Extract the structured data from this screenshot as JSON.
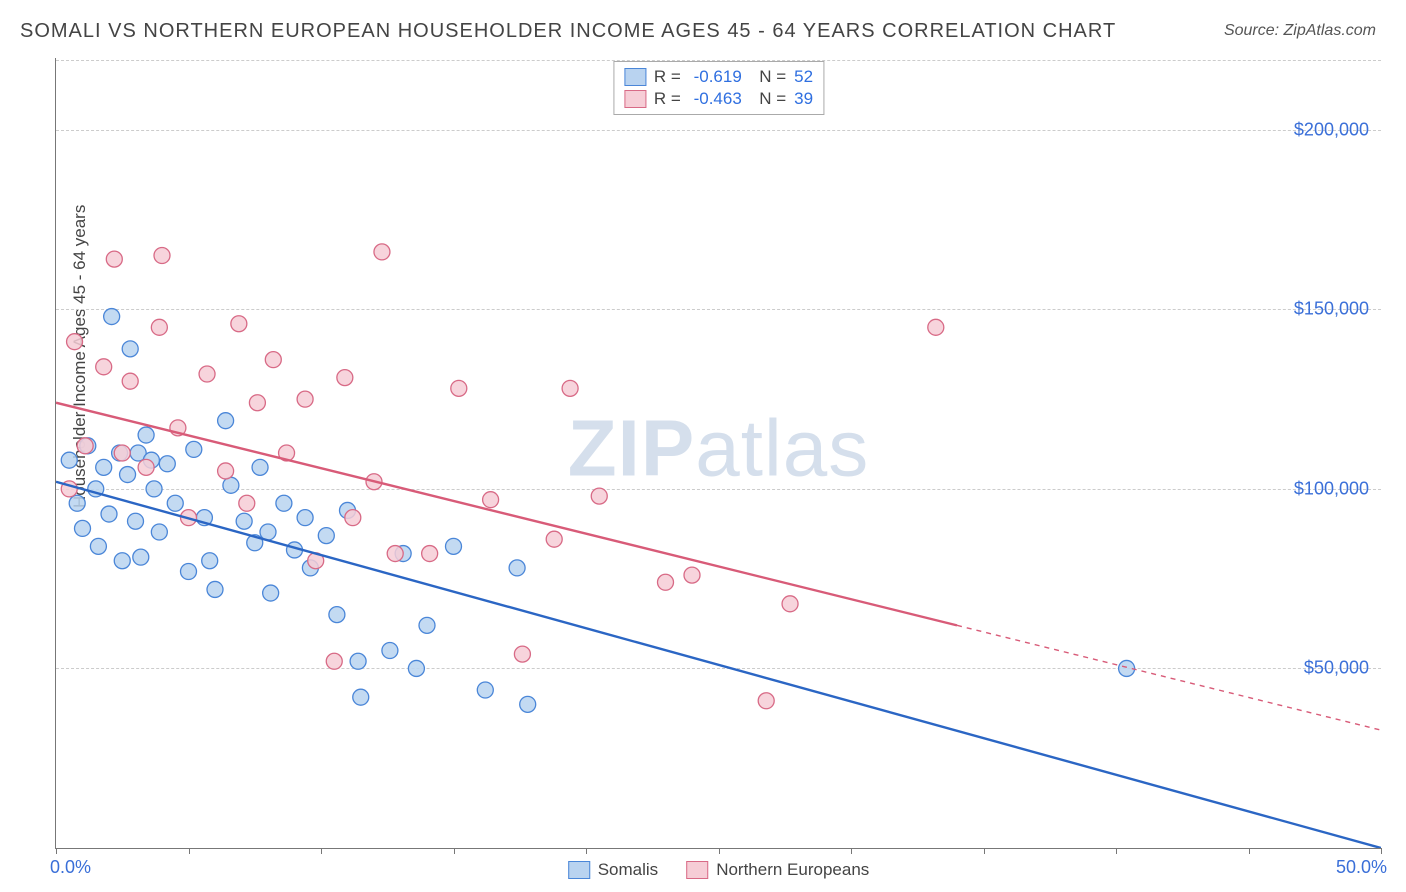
{
  "title": "SOMALI VS NORTHERN EUROPEAN HOUSEHOLDER INCOME AGES 45 - 64 YEARS CORRELATION CHART",
  "source": "Source: ZipAtlas.com",
  "ylabel": "Householder Income Ages 45 - 64 years",
  "watermark_a": "ZIP",
  "watermark_b": "atlas",
  "chart": {
    "type": "scatter-correlation",
    "background_color": "#ffffff",
    "grid_color": "#cccccc",
    "axis_color": "#777777",
    "text_color": "#444444",
    "value_color": "#2f6fe0",
    "font_size_title": 20,
    "font_size_axis": 17,
    "font_size_tick": 18,
    "xlim": [
      0,
      50
    ],
    "ylim": [
      0,
      220000
    ],
    "x_tick_positions": [
      0,
      5,
      10,
      15,
      20,
      25,
      30,
      35,
      40,
      45,
      50
    ],
    "x_tick_labels_shown": {
      "0": "0.0%",
      "50": "50.0%"
    },
    "y_grid": [
      50000,
      100000,
      150000,
      200000
    ],
    "y_tick_labels": [
      "$50,000",
      "$100,000",
      "$150,000",
      "$200,000"
    ],
    "marker_radius": 8,
    "marker_stroke_width": 1.3,
    "line_width": 2.4,
    "series": [
      {
        "id": "somalis",
        "label": "Somalis",
        "fill": "#b9d3f0",
        "stroke": "#4a86d8",
        "line_color": "#2b66c4",
        "R": "-0.619",
        "N": "52",
        "trend": {
          "x1": 0,
          "y1": 102000,
          "x2": 50,
          "y2": 0,
          "extrapolate_from_x": 50
        },
        "points": [
          [
            0.5,
            108000
          ],
          [
            0.8,
            96000
          ],
          [
            1.0,
            89000
          ],
          [
            1.2,
            112000
          ],
          [
            1.5,
            100000
          ],
          [
            1.6,
            84000
          ],
          [
            1.8,
            106000
          ],
          [
            2.0,
            93000
          ],
          [
            2.1,
            148000
          ],
          [
            2.4,
            110000
          ],
          [
            2.5,
            80000
          ],
          [
            2.7,
            104000
          ],
          [
            2.8,
            139000
          ],
          [
            3.0,
            91000
          ],
          [
            3.1,
            110000
          ],
          [
            3.2,
            81000
          ],
          [
            3.4,
            115000
          ],
          [
            3.6,
            108000
          ],
          [
            3.9,
            88000
          ],
          [
            4.2,
            107000
          ],
          [
            4.5,
            96000
          ],
          [
            5.0,
            77000
          ],
          [
            5.2,
            111000
          ],
          [
            5.6,
            92000
          ],
          [
            5.8,
            80000
          ],
          [
            6.0,
            72000
          ],
          [
            6.4,
            119000
          ],
          [
            6.6,
            101000
          ],
          [
            7.1,
            91000
          ],
          [
            7.5,
            85000
          ],
          [
            7.7,
            106000
          ],
          [
            8.0,
            88000
          ],
          [
            8.1,
            71000
          ],
          [
            8.6,
            96000
          ],
          [
            9.0,
            83000
          ],
          [
            9.4,
            92000
          ],
          [
            9.6,
            78000
          ],
          [
            10.2,
            87000
          ],
          [
            10.6,
            65000
          ],
          [
            11.0,
            94000
          ],
          [
            11.4,
            52000
          ],
          [
            11.5,
            42000
          ],
          [
            12.6,
            55000
          ],
          [
            13.1,
            82000
          ],
          [
            13.6,
            50000
          ],
          [
            14.0,
            62000
          ],
          [
            15.0,
            84000
          ],
          [
            16.2,
            44000
          ],
          [
            17.4,
            78000
          ],
          [
            17.8,
            40000
          ],
          [
            40.4,
            50000
          ],
          [
            3.7,
            100000
          ]
        ]
      },
      {
        "id": "northern_europeans",
        "label": "Northern Europeans",
        "fill": "#f6cdd6",
        "stroke": "#d86a86",
        "line_color": "#d85b78",
        "R": "-0.463",
        "N": "39",
        "trend": {
          "x1": 0,
          "y1": 124000,
          "x2": 34,
          "y2": 62000,
          "extrapolate_from_x": 34
        },
        "points": [
          [
            0.5,
            100000
          ],
          [
            0.7,
            141000
          ],
          [
            1.1,
            112000
          ],
          [
            1.8,
            134000
          ],
          [
            2.2,
            164000
          ],
          [
            2.5,
            110000
          ],
          [
            2.8,
            130000
          ],
          [
            3.4,
            106000
          ],
          [
            3.9,
            145000
          ],
          [
            4.0,
            165000
          ],
          [
            4.6,
            117000
          ],
          [
            5.0,
            92000
          ],
          [
            5.7,
            132000
          ],
          [
            6.4,
            105000
          ],
          [
            6.9,
            146000
          ],
          [
            7.2,
            96000
          ],
          [
            7.6,
            124000
          ],
          [
            8.2,
            136000
          ],
          [
            8.7,
            110000
          ],
          [
            9.4,
            125000
          ],
          [
            9.8,
            80000
          ],
          [
            10.5,
            52000
          ],
          [
            10.9,
            131000
          ],
          [
            11.2,
            92000
          ],
          [
            12.0,
            102000
          ],
          [
            12.3,
            166000
          ],
          [
            12.8,
            82000
          ],
          [
            14.1,
            82000
          ],
          [
            15.2,
            128000
          ],
          [
            16.4,
            97000
          ],
          [
            17.6,
            54000
          ],
          [
            18.8,
            86000
          ],
          [
            19.4,
            128000
          ],
          [
            20.5,
            98000
          ],
          [
            23.0,
            74000
          ],
          [
            24.0,
            76000
          ],
          [
            26.8,
            41000
          ],
          [
            27.7,
            68000
          ],
          [
            33.2,
            145000
          ]
        ]
      }
    ]
  }
}
